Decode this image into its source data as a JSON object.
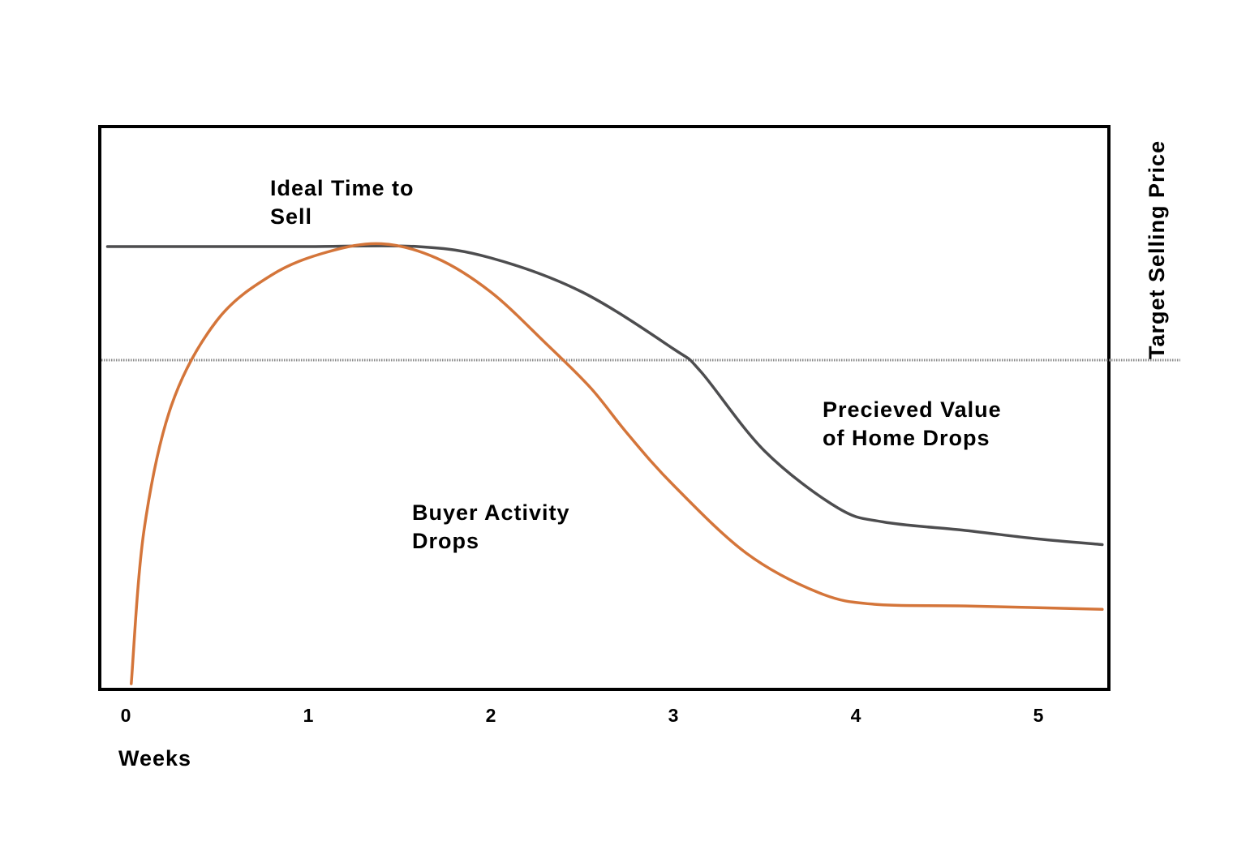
{
  "chart_data": {
    "type": "line",
    "xlabel": "Weeks",
    "ylabel": "Target Selling Price",
    "x_ticks": [
      "0",
      "1",
      "2",
      "3",
      "4",
      "5"
    ],
    "xlim": [
      0,
      5.35
    ],
    "ylim": [
      0,
      100
    ],
    "grid": false,
    "reference_line": {
      "name": "Target Selling Price",
      "y": 58,
      "style": "dotted",
      "color": "#8a8a8a"
    },
    "series": [
      {
        "name": "Precieved Value of Home",
        "color": "#4d4d4f",
        "x": [
          -0.1,
          0.5,
          1.0,
          1.6,
          2.0,
          2.5,
          3.0,
          3.15,
          3.5,
          3.9,
          4.15,
          4.6,
          5.0,
          5.35
        ],
        "y": [
          78,
          78,
          78,
          78,
          76,
          70,
          60,
          56,
          42,
          32,
          29.5,
          28,
          26.5,
          25.5
        ]
      },
      {
        "name": "Buyer Activity",
        "color": "#d4753a",
        "x": [
          0.03,
          0.1,
          0.25,
          0.5,
          0.8,
          1.1,
          1.4,
          1.7,
          2.0,
          2.3,
          2.55,
          2.75,
          3.0,
          3.4,
          3.8,
          4.1,
          4.6,
          5.35
        ],
        "y": [
          1,
          28,
          50,
          65,
          73,
          77,
          78.5,
          76,
          70,
          61,
          53,
          45,
          36,
          24,
          17,
          15,
          14.7,
          14.1
        ]
      }
    ],
    "annotations": [
      {
        "lines": [
          "Ideal Time to",
          "Sell"
        ]
      },
      {
        "lines": [
          "Buyer Activity",
          "Drops"
        ]
      },
      {
        "lines": [
          "Precieved Value",
          "of Home Drops"
        ]
      }
    ]
  }
}
